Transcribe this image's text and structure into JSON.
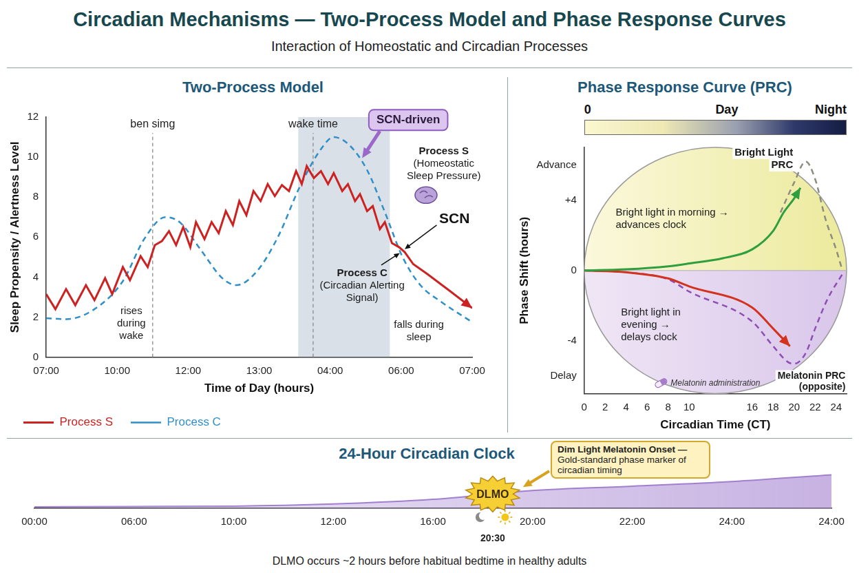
{
  "header": {
    "title": "Circadian Mechanisms — Two-Process Model and Phase Response Curves",
    "subtitle": "Interaction of Homeostatic and Circadian Processes"
  },
  "chart_data": [
    {
      "type": "line",
      "title": "Two-Process Model",
      "x_label": "Time of Day (hours)",
      "y_label": "Sleep Propensity / Alertness Level",
      "xlim": [
        0,
        6
      ],
      "xticks": [
        {
          "value": 0,
          "label": "07:00"
        },
        {
          "value": 1,
          "label": "10:00"
        },
        {
          "value": 2,
          "label": "12:00"
        },
        {
          "value": 3,
          "label": "13:00"
        },
        {
          "value": 4,
          "label": "04:00"
        },
        {
          "value": 5,
          "label": "06:00"
        },
        {
          "value": 6,
          "label": "07:00"
        }
      ],
      "ylim": [
        0,
        12
      ],
      "yticks": [
        0,
        2,
        4,
        6,
        8,
        10,
        12
      ],
      "grid": false,
      "legend": "bottom",
      "series": [
        {
          "name": "Process S",
          "color": "#cc2222",
          "line_style": "solid",
          "marker": "arrow",
          "x": [
            0,
            0.13,
            0.28,
            0.41,
            0.56,
            0.68,
            0.83,
            0.93,
            1.08,
            1.18,
            1.33,
            1.43,
            1.53,
            1.63,
            1.73,
            1.83,
            1.93,
            2.03,
            2.11,
            2.23,
            2.33,
            2.43,
            2.53,
            2.63,
            2.72,
            2.82,
            2.92,
            3.02,
            3.12,
            3.22,
            3.32,
            3.42,
            3.52,
            3.6,
            3.67,
            3.77,
            3.87,
            3.97,
            4.05,
            4.17,
            4.25,
            4.35,
            4.42,
            4.52,
            4.6,
            4.7,
            4.77,
            4.87,
            4.97,
            5.05,
            5.17,
            5.37,
            5.67,
            6.0
          ],
          "values": [
            3.15,
            2.4,
            3.4,
            2.6,
            3.6,
            2.85,
            3.95,
            3.15,
            4.5,
            3.85,
            5.05,
            4.5,
            5.6,
            5.8,
            6.3,
            5.6,
            6.5,
            5.5,
            6.75,
            5.9,
            6.75,
            6.2,
            7.3,
            6.6,
            7.8,
            7.1,
            8.3,
            7.8,
            8.65,
            8.05,
            8.6,
            8.3,
            9.3,
            8.65,
            9.55,
            8.95,
            9.3,
            8.65,
            9.2,
            8.3,
            8.65,
            7.8,
            8.15,
            7.3,
            7.55,
            6.4,
            6.75,
            5.7,
            5.5,
            5.25,
            4.65,
            4.15,
            3.35,
            2.45
          ]
        },
        {
          "name": "Process C",
          "color": "#2f8fc9",
          "line_style": "dashed",
          "x": [
            0,
            0.28,
            0.68,
            1.08,
            1.38,
            1.68,
            1.88,
            2.18,
            2.48,
            2.68,
            2.97,
            3.27,
            3.57,
            3.87,
            4.05,
            4.27,
            4.52,
            4.77,
            5.02,
            5.27,
            5.57,
            6.0
          ],
          "values": [
            1.95,
            1.9,
            2.4,
            3.8,
            5.9,
            7.0,
            6.75,
            5.35,
            3.95,
            3.6,
            4.3,
            6.05,
            8.5,
            10.4,
            11.0,
            10.6,
            9.35,
            7.25,
            5.0,
            3.6,
            2.75,
            1.75
          ]
        }
      ],
      "shaded_x": [
        3.55,
        4.84
      ],
      "vlines": [
        {
          "x": 1.5,
          "label": "ben simg"
        },
        {
          "x": 3.76,
          "label": "wake time"
        }
      ],
      "annotations": [
        {
          "lines": [
            "SCN-driven"
          ]
        },
        {
          "lines": [
            "Process S",
            "(Homeostatic",
            "Sleep Pressure)"
          ]
        },
        {
          "lines": [
            "SCN"
          ]
        },
        {
          "lines": [
            "Process C",
            "(Circadian Alerting",
            "Signal)"
          ]
        },
        {
          "lines": [
            "rises",
            "during",
            "wake"
          ]
        },
        {
          "lines": [
            "falls during",
            "sleep"
          ]
        }
      ]
    },
    {
      "type": "line",
      "title": "Phase Response Curve (PRC)",
      "x_label": "Circadian Time (CT)",
      "y_label": "Phase Shift (hours)",
      "color_bar_labels": [
        "0",
        "Day",
        "Night"
      ],
      "xlim": [
        0,
        25
      ],
      "xticks": [
        0,
        2,
        4,
        6,
        8,
        10,
        16,
        18,
        20,
        22,
        24
      ],
      "ylim": [
        -7,
        7
      ],
      "yticks": [
        {
          "value": 6,
          "label": "Advance"
        },
        {
          "value": 4,
          "label": "+4"
        },
        0,
        -4,
        {
          "value": -6,
          "label": "Delay"
        }
      ],
      "grid": false,
      "series": [
        {
          "name": "Bright light in morning → advances clock",
          "color": "#2e9e3e",
          "line_style": "solid",
          "marker": "arrow",
          "x": [
            0,
            4,
            8,
            10,
            13.2,
            16,
            18,
            19,
            20,
            20.6
          ],
          "values": [
            0,
            0.07,
            0.24,
            0.4,
            0.7,
            1.2,
            2.25,
            3.3,
            4.1,
            4.7
          ]
        },
        {
          "name": "Bright Light PRC",
          "color": "#8c8c80",
          "line_style": "dashed",
          "x": [
            18.7,
            20,
            21.1,
            22,
            23,
            24,
            24.6
          ],
          "values": [
            3.3,
            5.0,
            6.2,
            5.2,
            2.9,
            1.2,
            0
          ]
        },
        {
          "name": "Bright light in evening → delays clock",
          "color": "#d2321e",
          "line_style": "solid",
          "marker": "arrow",
          "x": [
            0,
            4,
            8,
            10,
            16,
            18,
            19.6
          ],
          "values": [
            0,
            -0.1,
            -0.45,
            -0.9,
            -2.1,
            -3.3,
            -4.3
          ]
        },
        {
          "name": "Melatonin PRC (opposite)",
          "color": "#8e4fb5",
          "line_style": "dashed",
          "x": [
            0,
            4,
            8,
            10,
            16,
            18,
            19.4,
            20,
            21.1,
            22,
            23.2,
            24.6
          ],
          "values": [
            0,
            -0.1,
            -0.5,
            -1.2,
            -2.9,
            -4.3,
            -5.2,
            -5.3,
            -4.7,
            -3.3,
            -1.6,
            -0.2
          ]
        }
      ],
      "annotations": [
        {
          "lines": [
            "Melatonin administration"
          ]
        }
      ]
    },
    {
      "type": "area",
      "title": "24-Hour Circadian Clock",
      "xlim": [
        0,
        8
      ],
      "xticks": [
        {
          "value": 0,
          "label": "00:00"
        },
        {
          "value": 1,
          "label": "06:00"
        },
        {
          "value": 2,
          "label": "10:00"
        },
        {
          "value": 3,
          "label": "12:00"
        },
        {
          "value": 4,
          "label": "16:00"
        },
        {
          "value": 5,
          "label": "20:00"
        },
        {
          "value": 6,
          "label": "22:00"
        },
        {
          "value": 7,
          "label": "24:00"
        },
        {
          "value": 8,
          "label": "24:00"
        }
      ],
      "ylim": [
        0,
        12
      ],
      "grid": false,
      "tick_labels": "x",
      "color": "#a27fcf",
      "x": [
        0,
        1,
        2,
        3,
        4,
        5,
        6,
        7,
        8
      ],
      "values": [
        0.4,
        0.5,
        0.6,
        1.2,
        2.5,
        5.0,
        6.2,
        7.5,
        9.4
      ],
      "dlmo": {
        "label": "DLMO",
        "x": 4.6,
        "y": 4.0,
        "time": "20:30",
        "callout_title": "Dim Light Melatonin Onset —",
        "callout_text": "Gold-standard phase marker of circadian timing"
      },
      "caption": "DLMO occurs ~2 hours before habitual bedtime in healthy adults"
    }
  ]
}
